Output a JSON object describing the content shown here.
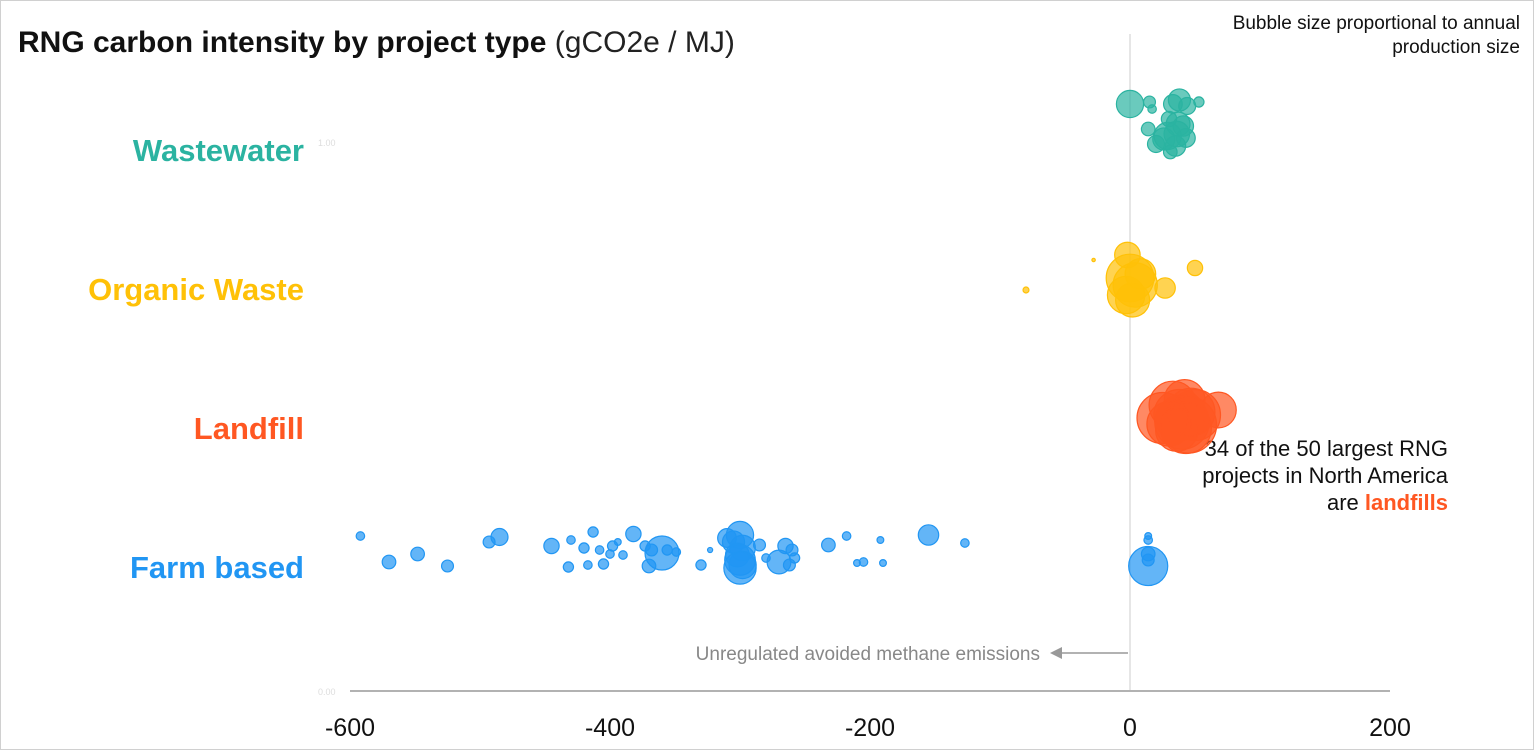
{
  "title": {
    "main": "RNG carbon intensity by project type",
    "unit": "(gCO2e / MJ)"
  },
  "size_note": "Bubble size proportional to annual production size",
  "annotation": {
    "prefix": "34 of the 50 largest RNG projects in North America are ",
    "highlight": "landfills"
  },
  "arrow_label": "Unregulated avoided methane emissions",
  "faint_labels": {
    "top": "1.00",
    "bottom": "0.00"
  },
  "colors": {
    "wastewater": "#2bb3a1",
    "organic": "#ffc107",
    "landfill": "#ff5722",
    "farm": "#2196f3",
    "axis": "#999999"
  },
  "chart_data": {
    "type": "scatter",
    "title": "RNG carbon intensity by project type (gCO2e / MJ)",
    "xlabel": "",
    "ylabel": "",
    "xlim": [
      -600,
      200
    ],
    "xticks": [
      "-600",
      "-400",
      "-200",
      "0",
      "200"
    ],
    "xtick_values": [
      -600,
      -400,
      -200,
      0,
      200
    ],
    "categories": [
      "Wastewater",
      "Organic Waste",
      "Landfill",
      "Farm based"
    ],
    "series": [
      {
        "name": "Wastewater",
        "color_key": "wastewater",
        "points": [
          {
            "x": 0,
            "j": -0.2,
            "s": 1.6
          },
          {
            "x": 15,
            "j": -0.22,
            "s": 0.7
          },
          {
            "x": 17,
            "j": -0.15,
            "s": 0.5
          },
          {
            "x": 33,
            "j": -0.2,
            "s": 1.1
          },
          {
            "x": 38,
            "j": -0.24,
            "s": 1.3
          },
          {
            "x": 44,
            "j": -0.18,
            "s": 1.0
          },
          {
            "x": 53,
            "j": -0.22,
            "s": 0.6
          },
          {
            "x": 30,
            "j": -0.05,
            "s": 0.9
          },
          {
            "x": 37,
            "j": 0.0,
            "s": 1.4
          },
          {
            "x": 14,
            "j": 0.05,
            "s": 0.8
          },
          {
            "x": 41,
            "j": 0.02,
            "s": 1.2
          },
          {
            "x": 36,
            "j": 0.1,
            "s": 1.5
          },
          {
            "x": 26,
            "j": 0.15,
            "s": 1.3
          },
          {
            "x": 20,
            "j": 0.2,
            "s": 1.0
          },
          {
            "x": 29,
            "j": 0.12,
            "s": 1.6
          },
          {
            "x": 35,
            "j": 0.22,
            "s": 1.2
          },
          {
            "x": 43,
            "j": 0.14,
            "s": 1.1
          },
          {
            "x": 31,
            "j": 0.28,
            "s": 0.8
          }
        ]
      },
      {
        "name": "Organic Waste",
        "color_key": "organic",
        "points": [
          {
            "x": -80,
            "j": 0.1,
            "s": 0.35
          },
          {
            "x": -28,
            "j": -0.2,
            "s": 0.2
          },
          {
            "x": -2,
            "j": -0.25,
            "s": 1.5
          },
          {
            "x": 50,
            "j": -0.12,
            "s": 0.9
          },
          {
            "x": 27,
            "j": 0.08,
            "s": 1.2
          },
          {
            "x": 0,
            "j": -0.02,
            "s": 2.8
          },
          {
            "x": 4,
            "j": 0.05,
            "s": 2.6
          },
          {
            "x": -3,
            "j": 0.15,
            "s": 2.2
          },
          {
            "x": 2,
            "j": 0.2,
            "s": 2.0
          },
          {
            "x": 8,
            "j": -0.06,
            "s": 1.8
          }
        ]
      },
      {
        "name": "Landfill",
        "color_key": "landfill",
        "points": [
          {
            "x": 68,
            "j": -0.1,
            "s": 2.1
          },
          {
            "x": 42,
            "j": -0.2,
            "s": 2.4
          },
          {
            "x": 50,
            "j": -0.05,
            "s": 3.0
          },
          {
            "x": 33,
            "j": -0.15,
            "s": 2.8
          },
          {
            "x": 38,
            "j": -0.05,
            "s": 3.0
          },
          {
            "x": 40,
            "j": 0.02,
            "s": 3.2
          },
          {
            "x": 25,
            "j": -0.02,
            "s": 3.0
          },
          {
            "x": 45,
            "j": 0.05,
            "s": 3.3
          },
          {
            "x": 43,
            "j": 0.08,
            "s": 3.0
          },
          {
            "x": 30,
            "j": 0.04,
            "s": 2.6
          },
          {
            "x": 47,
            "j": -0.08,
            "s": 2.8
          },
          {
            "x": 36,
            "j": 0.1,
            "s": 2.5
          }
        ]
      },
      {
        "name": "Farm based",
        "color_key": "farm",
        "points": [
          {
            "x": -592,
            "j": -0.24,
            "s": 0.5
          },
          {
            "x": -570,
            "j": 0.02,
            "s": 0.8
          },
          {
            "x": -548,
            "j": -0.06,
            "s": 0.8
          },
          {
            "x": -525,
            "j": 0.06,
            "s": 0.7
          },
          {
            "x": -493,
            "j": -0.18,
            "s": 0.7
          },
          {
            "x": -485,
            "j": -0.23,
            "s": 1.0
          },
          {
            "x": -445,
            "j": -0.14,
            "s": 0.9
          },
          {
            "x": -432,
            "j": 0.07,
            "s": 0.6
          },
          {
            "x": -430,
            "j": -0.2,
            "s": 0.5
          },
          {
            "x": -420,
            "j": -0.12,
            "s": 0.6
          },
          {
            "x": -417,
            "j": 0.05,
            "s": 0.5
          },
          {
            "x": -413,
            "j": -0.28,
            "s": 0.6
          },
          {
            "x": -408,
            "j": -0.1,
            "s": 0.5
          },
          {
            "x": -405,
            "j": 0.04,
            "s": 0.6
          },
          {
            "x": -400,
            "j": -0.06,
            "s": 0.5
          },
          {
            "x": -398,
            "j": -0.14,
            "s": 0.6
          },
          {
            "x": -394,
            "j": -0.18,
            "s": 0.4
          },
          {
            "x": -390,
            "j": -0.05,
            "s": 0.5
          },
          {
            "x": -382,
            "j": -0.26,
            "s": 0.9
          },
          {
            "x": -373,
            "j": -0.14,
            "s": 0.6
          },
          {
            "x": -368,
            "j": -0.1,
            "s": 0.7
          },
          {
            "x": -360,
            "j": -0.07,
            "s": 2.0
          },
          {
            "x": -356,
            "j": -0.1,
            "s": 0.6
          },
          {
            "x": -349,
            "j": -0.08,
            "s": 0.5
          },
          {
            "x": -370,
            "j": 0.06,
            "s": 0.8
          },
          {
            "x": -330,
            "j": 0.05,
            "s": 0.6
          },
          {
            "x": -323,
            "j": -0.1,
            "s": 0.3
          },
          {
            "x": -310,
            "j": -0.22,
            "s": 1.1
          },
          {
            "x": -300,
            "j": -0.25,
            "s": 1.6
          },
          {
            "x": -305,
            "j": -0.18,
            "s": 1.3
          },
          {
            "x": -298,
            "j": -0.12,
            "s": 1.5
          },
          {
            "x": -302,
            "j": -0.05,
            "s": 1.4
          },
          {
            "x": -300,
            "j": 0.0,
            "s": 1.8
          },
          {
            "x": -298,
            "j": 0.05,
            "s": 1.6
          },
          {
            "x": -300,
            "j": 0.08,
            "s": 1.9
          },
          {
            "x": -285,
            "j": -0.15,
            "s": 0.7
          },
          {
            "x": -280,
            "j": -0.02,
            "s": 0.5
          },
          {
            "x": -270,
            "j": 0.02,
            "s": 1.4
          },
          {
            "x": -265,
            "j": -0.14,
            "s": 0.9
          },
          {
            "x": -260,
            "j": -0.1,
            "s": 0.7
          },
          {
            "x": -258,
            "j": -0.02,
            "s": 0.6
          },
          {
            "x": -262,
            "j": 0.05,
            "s": 0.7
          },
          {
            "x": -232,
            "j": -0.15,
            "s": 0.8
          },
          {
            "x": -218,
            "j": -0.24,
            "s": 0.5
          },
          {
            "x": -210,
            "j": 0.03,
            "s": 0.4
          },
          {
            "x": -205,
            "j": 0.02,
            "s": 0.5
          },
          {
            "x": -192,
            "j": -0.2,
            "s": 0.4
          },
          {
            "x": -190,
            "j": 0.03,
            "s": 0.4
          },
          {
            "x": -155,
            "j": -0.25,
            "s": 1.2
          },
          {
            "x": -127,
            "j": -0.17,
            "s": 0.5
          },
          {
            "x": 14,
            "j": -0.24,
            "s": 0.4
          },
          {
            "x": 14,
            "j": -0.2,
            "s": 0.5
          },
          {
            "x": 14,
            "j": -0.06,
            "s": 0.8
          },
          {
            "x": 14,
            "j": 0.0,
            "s": 0.7
          },
          {
            "x": 14,
            "j": 0.06,
            "s": 2.3
          }
        ]
      }
    ]
  }
}
